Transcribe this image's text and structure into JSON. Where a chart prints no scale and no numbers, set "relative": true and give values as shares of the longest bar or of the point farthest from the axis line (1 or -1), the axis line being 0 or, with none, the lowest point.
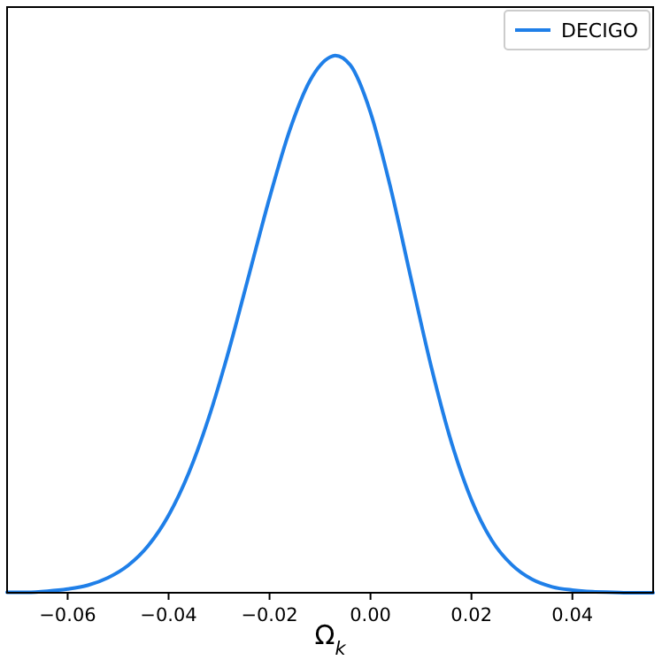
{
  "chart_data": {
    "type": "line",
    "relative": true,
    "xlabel": "Ω$_{k}$",
    "xlim": [
      -0.072,
      0.056
    ],
    "xticks": [
      {
        "value": -0.06,
        "label": "−0.06"
      },
      {
        "value": -0.04,
        "label": "−0.04"
      },
      {
        "value": -0.02,
        "label": "−0.02"
      },
      {
        "value": 0,
        "label": "0.00"
      },
      {
        "value": 0.02,
        "label": "0.02"
      },
      {
        "value": 0.04,
        "label": "0.04"
      }
    ],
    "tick_labels": "x",
    "legend": "top right",
    "grid": false,
    "series": [
      {
        "name": "DECIGO",
        "color": "#1f7fe8",
        "x": [
          -0.072,
          -0.068,
          -0.064,
          -0.06,
          -0.056,
          -0.052,
          -0.048,
          -0.044,
          -0.04,
          -0.036,
          -0.032,
          -0.028,
          -0.024,
          -0.02,
          -0.016,
          -0.012,
          -0.008,
          -0.007,
          -0.004,
          0,
          0.004,
          0.008,
          0.012,
          0.016,
          0.02,
          0.024,
          0.028,
          0.032,
          0.036,
          0.04,
          0.044,
          0.048,
          0.052,
          0.056
        ],
        "values": [
          0.001,
          0.001,
          0.003,
          0.007,
          0.014,
          0.028,
          0.051,
          0.088,
          0.144,
          0.223,
          0.327,
          0.453,
          0.594,
          0.735,
          0.861,
          0.953,
          0.997,
          1,
          0.982,
          0.894,
          0.753,
          0.586,
          0.422,
          0.281,
          0.173,
          0.098,
          0.052,
          0.025,
          0.011,
          0.005,
          0.002,
          0.001,
          0,
          0
        ]
      }
    ]
  }
}
